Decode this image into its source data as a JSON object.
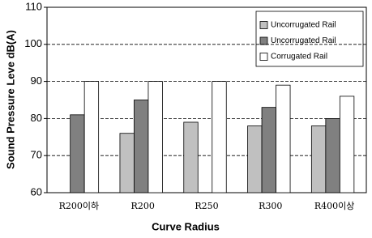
{
  "chart_data": {
    "type": "bar",
    "x_label": "Curve Radius",
    "y_label": "Sound Pressure Leve dB(A)",
    "categories": [
      "R200이하",
      "R200",
      "R250",
      "R300",
      "R400이상"
    ],
    "series": [
      {
        "name": "Uncorrugated Rail",
        "color": "#c0c0c0",
        "values": [
          null,
          76,
          79,
          78,
          78
        ]
      },
      {
        "name": "Uncorrugated Rail",
        "color": "#808080",
        "values": [
          81,
          85,
          null,
          83,
          80
        ]
      },
      {
        "name": "Corrugated Rail",
        "color": "#ffffff",
        "values": [
          90,
          90,
          90,
          89,
          86
        ]
      }
    ],
    "ylim": [
      60,
      110
    ],
    "yticks": [
      60,
      70,
      80,
      90,
      100,
      110
    ],
    "grid": true
  }
}
